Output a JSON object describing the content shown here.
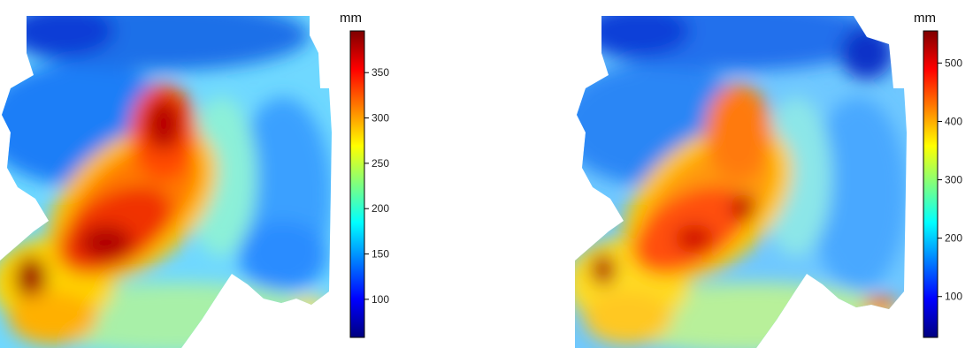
{
  "maps": [
    {
      "name": "left-map",
      "unit": "mm",
      "colorbar": {
        "min": 58,
        "max": 396,
        "ticks": [
          100,
          150,
          200,
          250,
          300,
          350
        ]
      }
    },
    {
      "name": "right-map",
      "unit": "mm",
      "colorbar": {
        "min": 30,
        "max": 555,
        "ticks": [
          100,
          200,
          300,
          400,
          500
        ]
      }
    }
  ],
  "colors": [
    "#00007f",
    "#0000ff",
    "#007fff",
    "#00ffff",
    "#7fff7f",
    "#ffff00",
    "#ff7f00",
    "#ff0000",
    "#7f0000"
  ]
}
